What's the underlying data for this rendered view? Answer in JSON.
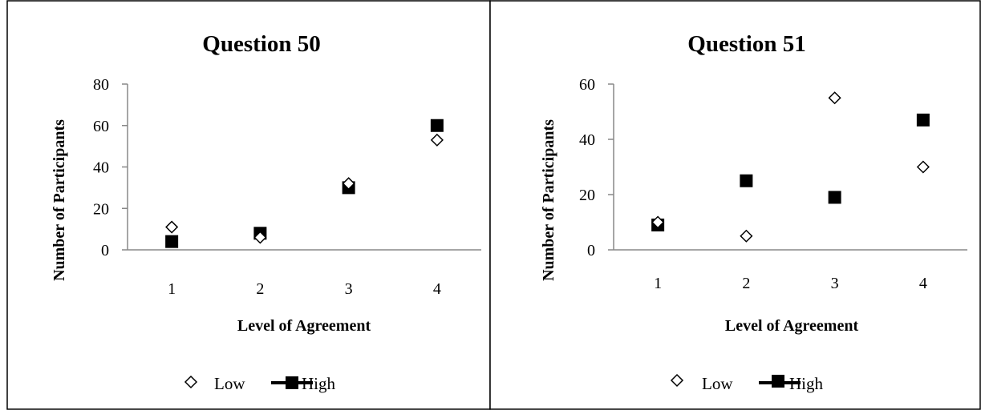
{
  "chart_data": [
    {
      "type": "scatter",
      "title": "Question 50",
      "xlabel": "Level of Agreement",
      "ylabel": "Number of Participants",
      "x": [
        1,
        2,
        3,
        4
      ],
      "xticks": [
        "1",
        "2",
        "3",
        "4"
      ],
      "xlim": [
        0.5,
        4.5
      ],
      "ylim": [
        0,
        80
      ],
      "yticks": [
        "0",
        "20",
        "40",
        "60",
        "80"
      ],
      "grid": false,
      "legend_position": "bottom",
      "series": [
        {
          "name": "Low",
          "marker": "diamond-open",
          "color": "#000000",
          "values": [
            11,
            6,
            32,
            53
          ]
        },
        {
          "name": "High",
          "marker": "square-filled",
          "color": "#000000",
          "values": [
            4,
            8,
            30,
            60
          ]
        }
      ]
    },
    {
      "type": "scatter",
      "title": "Question 51",
      "xlabel": "Level of Agreement",
      "ylabel": "Number of Participants",
      "x": [
        1,
        2,
        3,
        4
      ],
      "xticks": [
        "1",
        "2",
        "3",
        "4"
      ],
      "xlim": [
        0.5,
        4.5
      ],
      "ylim": [
        0,
        60
      ],
      "yticks": [
        "0",
        "20",
        "40",
        "60"
      ],
      "grid": false,
      "legend_position": "bottom",
      "series": [
        {
          "name": "Low",
          "marker": "diamond-open",
          "color": "#000000",
          "values": [
            10,
            5,
            55,
            30
          ]
        },
        {
          "name": "High",
          "marker": "square-filled",
          "color": "#000000",
          "values": [
            9,
            25,
            19,
            47
          ]
        }
      ]
    }
  ]
}
